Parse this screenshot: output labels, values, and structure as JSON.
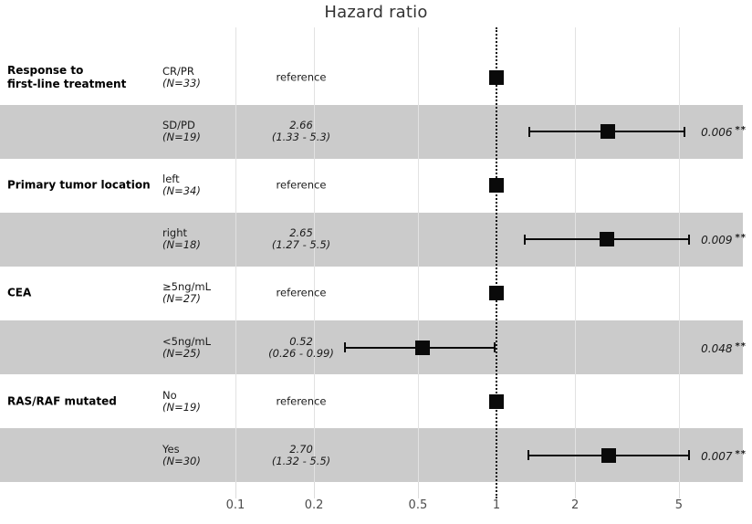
{
  "chart_data": {
    "type": "forest",
    "title": "Hazard ratio",
    "x_scale": "log10",
    "x_ticks": [
      0.1,
      0.2,
      0.5,
      1,
      2,
      5
    ],
    "x_tick_labels": [
      "0.1",
      "0.2",
      "0.5",
      "1",
      "2",
      "5"
    ],
    "reference_line_at": 1,
    "legend": "none",
    "grid": "vertical-only",
    "colors": {
      "stripe_band": "#cbcbcb",
      "marker": "#0a0a0a",
      "gridline": "#e2e2e2",
      "tick_label": "#4d4d4d",
      "title": "#333333"
    },
    "rows": [
      {
        "group": "Response to\nfirst-line treatment",
        "level": "CR/PR",
        "n_label": "(N=33)",
        "estimate_label": "reference",
        "reference": true,
        "hr": 1,
        "shaded": false
      },
      {
        "group": "",
        "level": "SD/PD",
        "n_label": "(N=19)",
        "estimate_label": "2.66",
        "ci_label": "(1.33 - 5.3)",
        "reference": false,
        "hr": 2.66,
        "ci_low": 1.33,
        "ci_high": 5.3,
        "p_label": "0.006",
        "sig": "**",
        "shaded": true
      },
      {
        "group": "Primary tumor location",
        "level": "left",
        "n_label": "(N=34)",
        "estimate_label": "reference",
        "reference": true,
        "hr": 1,
        "shaded": false
      },
      {
        "group": "",
        "level": "right",
        "n_label": "(N=18)",
        "estimate_label": "2.65",
        "ci_label": "(1.27 - 5.5)",
        "reference": false,
        "hr": 2.65,
        "ci_low": 1.27,
        "ci_high": 5.5,
        "p_label": "0.009",
        "sig": "**",
        "shaded": true
      },
      {
        "group": "CEA",
        "level": "≥5ng/mL",
        "n_label": "(N=27)",
        "estimate_label": "reference",
        "reference": true,
        "hr": 1,
        "shaded": false
      },
      {
        "group": "",
        "level": "<5ng/mL",
        "n_label": "(N=25)",
        "estimate_label": "0.52",
        "ci_label": "(0.26 - 0.99)",
        "reference": false,
        "hr": 0.52,
        "ci_low": 0.26,
        "ci_high": 0.99,
        "p_label": "0.048",
        "sig": "**",
        "shaded": true
      },
      {
        "group": "RAS/RAF mutated",
        "level": "No",
        "n_label": "(N=19)",
        "estimate_label": "reference",
        "reference": true,
        "hr": 1,
        "shaded": false
      },
      {
        "group": "",
        "level": "Yes",
        "n_label": "(N=30)",
        "estimate_label": "2.70",
        "ci_label": "(1.32 - 5.5)",
        "reference": false,
        "hr": 2.7,
        "ci_low": 1.32,
        "ci_high": 5.5,
        "p_label": "0.007",
        "sig": "**",
        "shaded": true
      }
    ]
  }
}
